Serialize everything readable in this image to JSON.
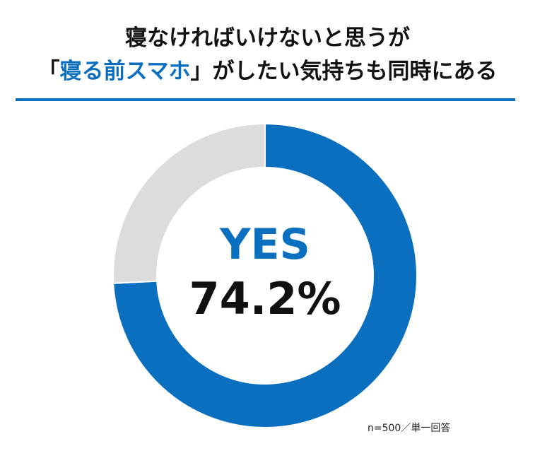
{
  "title": {
    "line1": "寝なければいけないと思うが",
    "line2_open": "「",
    "line2_highlight": "寝る前スマホ",
    "line2_rest": "」がしたい気持ちも同時にある"
  },
  "colors": {
    "accent": "#0b6fbf",
    "remainder": "#dcdcdc",
    "text": "#111111"
  },
  "chart_data": {
    "type": "pie",
    "donut": true,
    "categories": [
      "YES",
      ""
    ],
    "values": [
      74.2,
      25.8
    ],
    "unit": "%",
    "center_label": "YES",
    "center_value": "74.2%",
    "note": "n=500／単一回答"
  }
}
